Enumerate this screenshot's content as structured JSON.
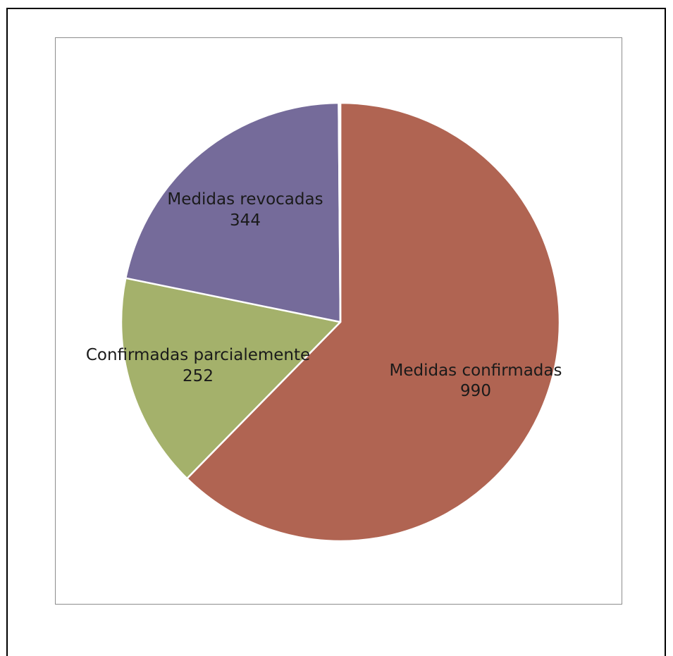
{
  "chart_data": {
    "type": "pie",
    "title": "",
    "slices": [
      {
        "label": "Medidas confirmadas",
        "value": 990,
        "color": "#b06452"
      },
      {
        "label": "Confirmadas parcialemente",
        "value": 252,
        "color": "#a4b16b"
      },
      {
        "label": "Medidas revocadas",
        "value": 344,
        "color": "#756b9a"
      },
      {
        "label": "",
        "value": 2,
        "color": "#9c9c9c"
      }
    ],
    "value_labels": [
      "990",
      "252",
      "344"
    ],
    "legend": "none",
    "start": "top",
    "direction": "clockwise"
  }
}
